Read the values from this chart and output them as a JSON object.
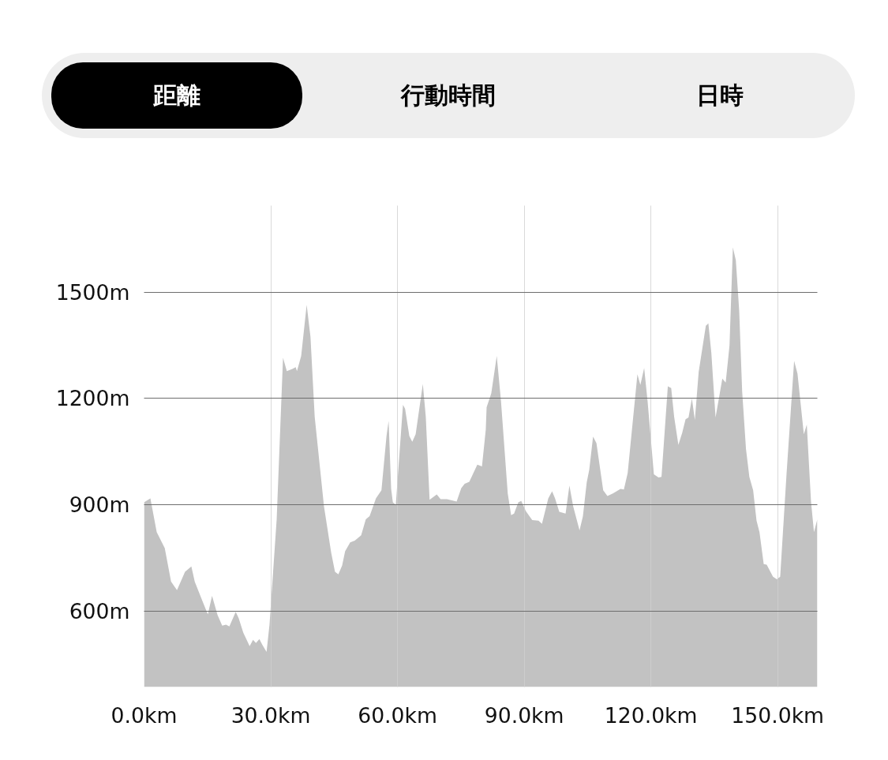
{
  "chart_data": {
    "type": "area",
    "annotations": [
      "距離",
      "行動時間",
      "日時"
    ],
    "x": [
      0,
      1.5,
      3.0,
      4.9,
      6.4,
      7.8,
      9.7,
      11.2,
      12.0,
      13.5,
      15.1,
      16.1,
      17.4,
      18.5,
      19.4,
      20.2,
      21.7,
      22.4,
      23.5,
      25.0,
      25.8,
      26.5,
      27.3,
      28.0,
      29.0,
      29.7,
      31.4,
      32.9,
      33.8,
      35.1,
      35.9,
      36.2,
      37.2,
      38.5,
      39.4,
      40.4,
      42.6,
      44.3,
      45.2,
      46.0,
      46.9,
      47.6,
      48.8,
      49.9,
      51.4,
      52.5,
      53.4,
      54.9,
      56.2,
      57.4,
      57.9,
      58.5,
      58.9,
      59.6,
      61.3,
      61.8,
      62.8,
      63.5,
      64.3,
      66.0,
      66.7,
      67.6,
      69.3,
      70.2,
      71.7,
      74.0,
      75.1,
      75.9,
      77.0,
      78.9,
      80.0,
      80.9,
      81.1,
      82.2,
      83.5,
      84.5,
      86.1,
      86.9,
      87.6,
      88.6,
      89.3,
      90.4,
      91.9,
      93.4,
      94.2,
      95.7,
      96.6,
      97.3,
      98.3,
      99.8,
      100.7,
      101.6,
      103.1,
      103.9,
      104.8,
      105.4,
      106.3,
      107.1,
      108.7,
      109.7,
      111.0,
      112.8,
      113.6,
      114.5,
      116.8,
      117.5,
      118.4,
      119.2,
      120.7,
      121.8,
      122.5,
      124.0,
      124.8,
      125.5,
      126.5,
      127.4,
      128.2,
      128.9,
      129.7,
      130.4,
      131.3,
      133.0,
      133.6,
      134.3,
      135.3,
      136.9,
      137.7,
      138.6,
      139.4,
      140.1,
      140.9,
      141.6,
      142.5,
      143.3,
      144.2,
      145.0,
      145.7,
      146.7,
      147.4,
      148.9,
      149.8,
      150.6,
      152.1,
      153.9,
      154.7,
      156.2,
      156.9,
      157.9,
      158.6,
      159.4
    ],
    "series": [
      {
        "color": "#c2c2c2",
        "values": [
          907,
          918,
          823,
          778,
          683,
          659,
          711,
          726,
          683,
          638,
          591,
          643,
          589,
          559,
          562,
          557,
          598,
          580,
          539,
          501,
          519,
          510,
          521,
          505,
          485,
          562,
          859,
          1315,
          1277,
          1283,
          1288,
          1277,
          1320,
          1464,
          1374,
          1148,
          895,
          765,
          711,
          704,
          729,
          769,
          794,
          799,
          814,
          859,
          868,
          918,
          941,
          1094,
          1137,
          945,
          907,
          900,
          1182,
          1171,
          1094,
          1078,
          1099,
          1241,
          1148,
          914,
          929,
          916,
          916,
          909,
          947,
          959,
          965,
          1013,
          1008,
          1112,
          1175,
          1214,
          1320,
          1193,
          932,
          871,
          875,
          907,
          911,
          882,
          857,
          855,
          846,
          918,
          938,
          918,
          880,
          875,
          954,
          895,
          828,
          868,
          963,
          999,
          1092,
          1074,
          941,
          925,
          932,
          945,
          943,
          990,
          1268,
          1238,
          1286,
          1193,
          986,
          977,
          979,
          1234,
          1229,
          1148,
          1069,
          1103,
          1141,
          1146,
          1200,
          1139,
          1274,
          1405,
          1412,
          1329,
          1146,
          1256,
          1245,
          1349,
          1626,
          1590,
          1446,
          1220,
          1058,
          979,
          941,
          855,
          823,
          733,
          731,
          697,
          690,
          697,
          986,
          1306,
          1270,
          1099,
          1126,
          909,
          823,
          859
        ]
      }
    ],
    "xlim": [
      0,
      159.4
    ],
    "ylim": [
      386,
      1744
    ],
    "xticks": [
      {
        "value": 0,
        "label": "0.0km"
      },
      {
        "value": 30,
        "label": "30.0km"
      },
      {
        "value": 60,
        "label": "60.0km"
      },
      {
        "value": 90,
        "label": "90.0km"
      },
      {
        "value": 120,
        "label": "120.0km"
      },
      {
        "value": 150,
        "label": "150.0km"
      }
    ],
    "yticks": [
      {
        "value": 600,
        "label": "600m"
      },
      {
        "value": 900,
        "label": "900m"
      },
      {
        "value": 1200,
        "label": "1200m"
      },
      {
        "value": 1500,
        "label": "1500m"
      }
    ],
    "grid": true
  }
}
